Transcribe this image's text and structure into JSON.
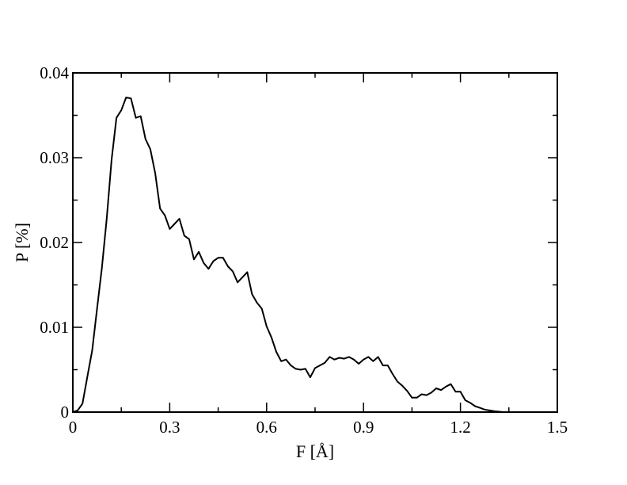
{
  "chart_data": {
    "type": "line",
    "xlabel": "F [Å]",
    "ylabel": "P [%]",
    "xlim": [
      0,
      1.5
    ],
    "ylim": [
      0,
      0.04
    ],
    "x_ticks": [
      0,
      0.3,
      0.6,
      0.9,
      1.2,
      1.5
    ],
    "x_tick_labels": [
      "0",
      "0.3",
      "0.6",
      "0.9",
      "1.2",
      "1.5"
    ],
    "y_ticks": [
      0,
      0.01,
      0.02,
      0.03,
      0.04
    ],
    "y_tick_labels": [
      "0",
      "0.01",
      "0.02",
      "0.03",
      "0.04"
    ],
    "grid": false,
    "line_color": "#000000",
    "series": [
      {
        "x": [
          0.0,
          0.015,
          0.03,
          0.045,
          0.06,
          0.075,
          0.09,
          0.105,
          0.12,
          0.135,
          0.15,
          0.165,
          0.18,
          0.195,
          0.21,
          0.225,
          0.24,
          0.255,
          0.27,
          0.285,
          0.3,
          0.315,
          0.33,
          0.345,
          0.36,
          0.375,
          0.39,
          0.405,
          0.42,
          0.435,
          0.45,
          0.465,
          0.48,
          0.495,
          0.51,
          0.525,
          0.54,
          0.555,
          0.57,
          0.585,
          0.6,
          0.615,
          0.63,
          0.645,
          0.66,
          0.675,
          0.69,
          0.705,
          0.72,
          0.735,
          0.75,
          0.765,
          0.78,
          0.795,
          0.81,
          0.825,
          0.84,
          0.855,
          0.87,
          0.885,
          0.9,
          0.915,
          0.93,
          0.945,
          0.96,
          0.975,
          0.99,
          1.005,
          1.02,
          1.035,
          1.05,
          1.065,
          1.08,
          1.095,
          1.11,
          1.125,
          1.14,
          1.155,
          1.17,
          1.185,
          1.2,
          1.215,
          1.23,
          1.245,
          1.26,
          1.275,
          1.29,
          1.305,
          1.32,
          1.335
        ],
        "y": [
          0.0,
          0.0002,
          0.001,
          0.0042,
          0.0073,
          0.0122,
          0.017,
          0.0228,
          0.0298,
          0.0347,
          0.0356,
          0.0371,
          0.037,
          0.0347,
          0.0349,
          0.0322,
          0.031,
          0.0282,
          0.024,
          0.0232,
          0.0216,
          0.0222,
          0.0228,
          0.0208,
          0.0204,
          0.018,
          0.0189,
          0.0176,
          0.0169,
          0.0178,
          0.0182,
          0.0182,
          0.0172,
          0.0166,
          0.0153,
          0.0159,
          0.0165,
          0.0139,
          0.0129,
          0.0122,
          0.0101,
          0.0088,
          0.0071,
          0.006,
          0.0062,
          0.0055,
          0.0051,
          0.005,
          0.0051,
          0.0041,
          0.0052,
          0.0055,
          0.0058,
          0.0065,
          0.0062,
          0.0064,
          0.0063,
          0.0065,
          0.0062,
          0.0057,
          0.0062,
          0.0065,
          0.006,
          0.0065,
          0.0055,
          0.0055,
          0.0045,
          0.0036,
          0.0031,
          0.0025,
          0.0017,
          0.0017,
          0.0021,
          0.002,
          0.0023,
          0.0028,
          0.0026,
          0.003,
          0.0033,
          0.0024,
          0.0024,
          0.0014,
          0.0011,
          0.0007,
          0.0005,
          0.0003,
          0.0002,
          0.0001,
          5e-05,
          0.0
        ]
      }
    ]
  }
}
